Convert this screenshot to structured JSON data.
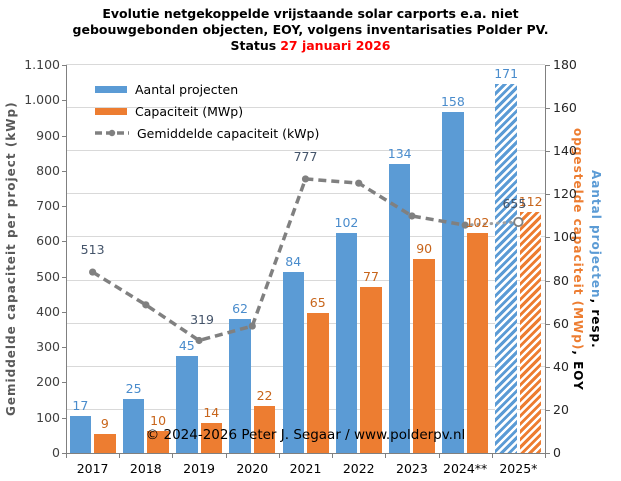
{
  "title": {
    "line1": "Evolutie netgekoppelde vrijstaande solar carports e.a. niet",
    "line2": "gebouwgebonden objecten, EOY, volgens inventarisaties Polder PV.",
    "status_label": "Status",
    "status_date": "27 januari 2026",
    "status_date_color": "#FF0000"
  },
  "legend": {
    "items": [
      {
        "label": "Aantal projecten",
        "swatch": "bar",
        "color": "#5B9BD5"
      },
      {
        "label": "Capaciteit (MWp)",
        "swatch": "bar",
        "color": "#ED7D31"
      },
      {
        "label": "Gemiddelde capaciteit (kWp)",
        "swatch": "dashed-line",
        "color": "#808080"
      }
    ]
  },
  "copyright": "© 2024-2026  Peter J. Segaar / www.polderpv.nl",
  "chart_data": {
    "type": "combo-bar-line",
    "categories": [
      "2017",
      "2018",
      "2019",
      "2020",
      "2021",
      "2022",
      "2023",
      "2024**",
      "2025*"
    ],
    "series": [
      {
        "name": "Aantal projecten",
        "type": "bar",
        "axis": "right",
        "color": "#5B9BD5",
        "label_color": "#4A8CCC",
        "values": [
          17,
          25,
          45,
          62,
          84,
          102,
          134,
          158,
          171
        ],
        "hatched": [
          false,
          false,
          false,
          false,
          false,
          false,
          false,
          false,
          true
        ]
      },
      {
        "name": "Capaciteit (MWp)",
        "type": "bar",
        "axis": "right",
        "color": "#ED7D31",
        "label_color": "#C8651B",
        "values": [
          9,
          10,
          14,
          22,
          65,
          77,
          90,
          102,
          112
        ],
        "hatched": [
          false,
          false,
          false,
          false,
          false,
          false,
          false,
          false,
          true
        ]
      },
      {
        "name": "Gemiddelde capaciteit (kWp)",
        "type": "line",
        "axis": "left",
        "color": "#808080",
        "dotted_segment_color": "#A0A0A0",
        "values": [
          513,
          420,
          319,
          360,
          777,
          765,
          672,
          646,
          655
        ],
        "point_labels": [
          513,
          null,
          319,
          null,
          777,
          null,
          null,
          null,
          655
        ],
        "last_segment_style": "dotted-projection",
        "last_marker": "open-circle"
      }
    ],
    "left_axis": {
      "title": "Gemiddelde capaciteit per project (kWp)",
      "min": 0,
      "max": 1100,
      "step": 100,
      "tick_labels": [
        "0",
        "100",
        "200",
        "300",
        "400",
        "500",
        "600",
        "700",
        "800",
        "900",
        "1.000",
        "1.100"
      ]
    },
    "right_axis": {
      "min": 0,
      "max": 180,
      "step": 20,
      "tick_labels": [
        "0",
        "20",
        "40",
        "60",
        "80",
        "100",
        "120",
        "140",
        "160",
        "180"
      ],
      "title_parts_line1": [
        {
          "text": "Aantal projecten",
          "color": "#5B9BD5"
        },
        {
          "text": ", resp.",
          "color": "#000000"
        }
      ],
      "title_parts_line2": [
        {
          "text": "opgestelde capaciteit (MWp)",
          "color": "#ED7D31"
        },
        {
          "text": ", EOY",
          "color": "#000000"
        }
      ]
    },
    "grid": "horizontal, every 20 units of right axis",
    "legend_position": "top-left inside plot"
  }
}
